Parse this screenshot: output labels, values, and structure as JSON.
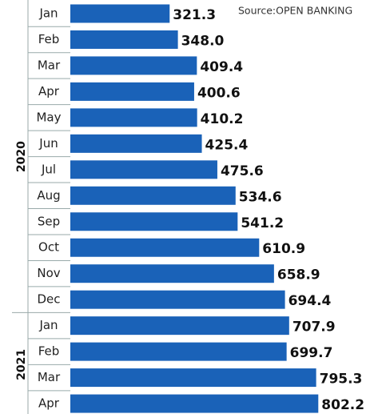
{
  "chart_data": {
    "type": "bar",
    "orientation": "horizontal",
    "source": "Source:OPEN BANKING",
    "color": "#1a62b8",
    "groups": [
      {
        "label": "2020",
        "categories": [
          "Jan",
          "Feb",
          "Mar",
          "Apr",
          "May",
          "Jun",
          "Jul",
          "Aug",
          "Sep",
          "Oct",
          "Nov",
          "Dec"
        ],
        "values": [
          321.3,
          348.0,
          409.4,
          400.6,
          410.2,
          425.4,
          475.6,
          534.6,
          541.2,
          610.9,
          658.9,
          694.4
        ],
        "value_labels": [
          "321.3",
          "348.0",
          "409.4",
          "400.6",
          "410.2",
          "425.4",
          "475.6",
          "534.6",
          "541.2",
          "610.9",
          "658.9",
          "694.4"
        ]
      },
      {
        "label": "2021",
        "categories": [
          "Jan",
          "Feb",
          "Mar",
          "Apr"
        ],
        "values": [
          707.9,
          699.7,
          795.3,
          802.2
        ],
        "value_labels": [
          "707.9",
          "699.7",
          "795.3",
          "802.2"
        ]
      }
    ]
  }
}
